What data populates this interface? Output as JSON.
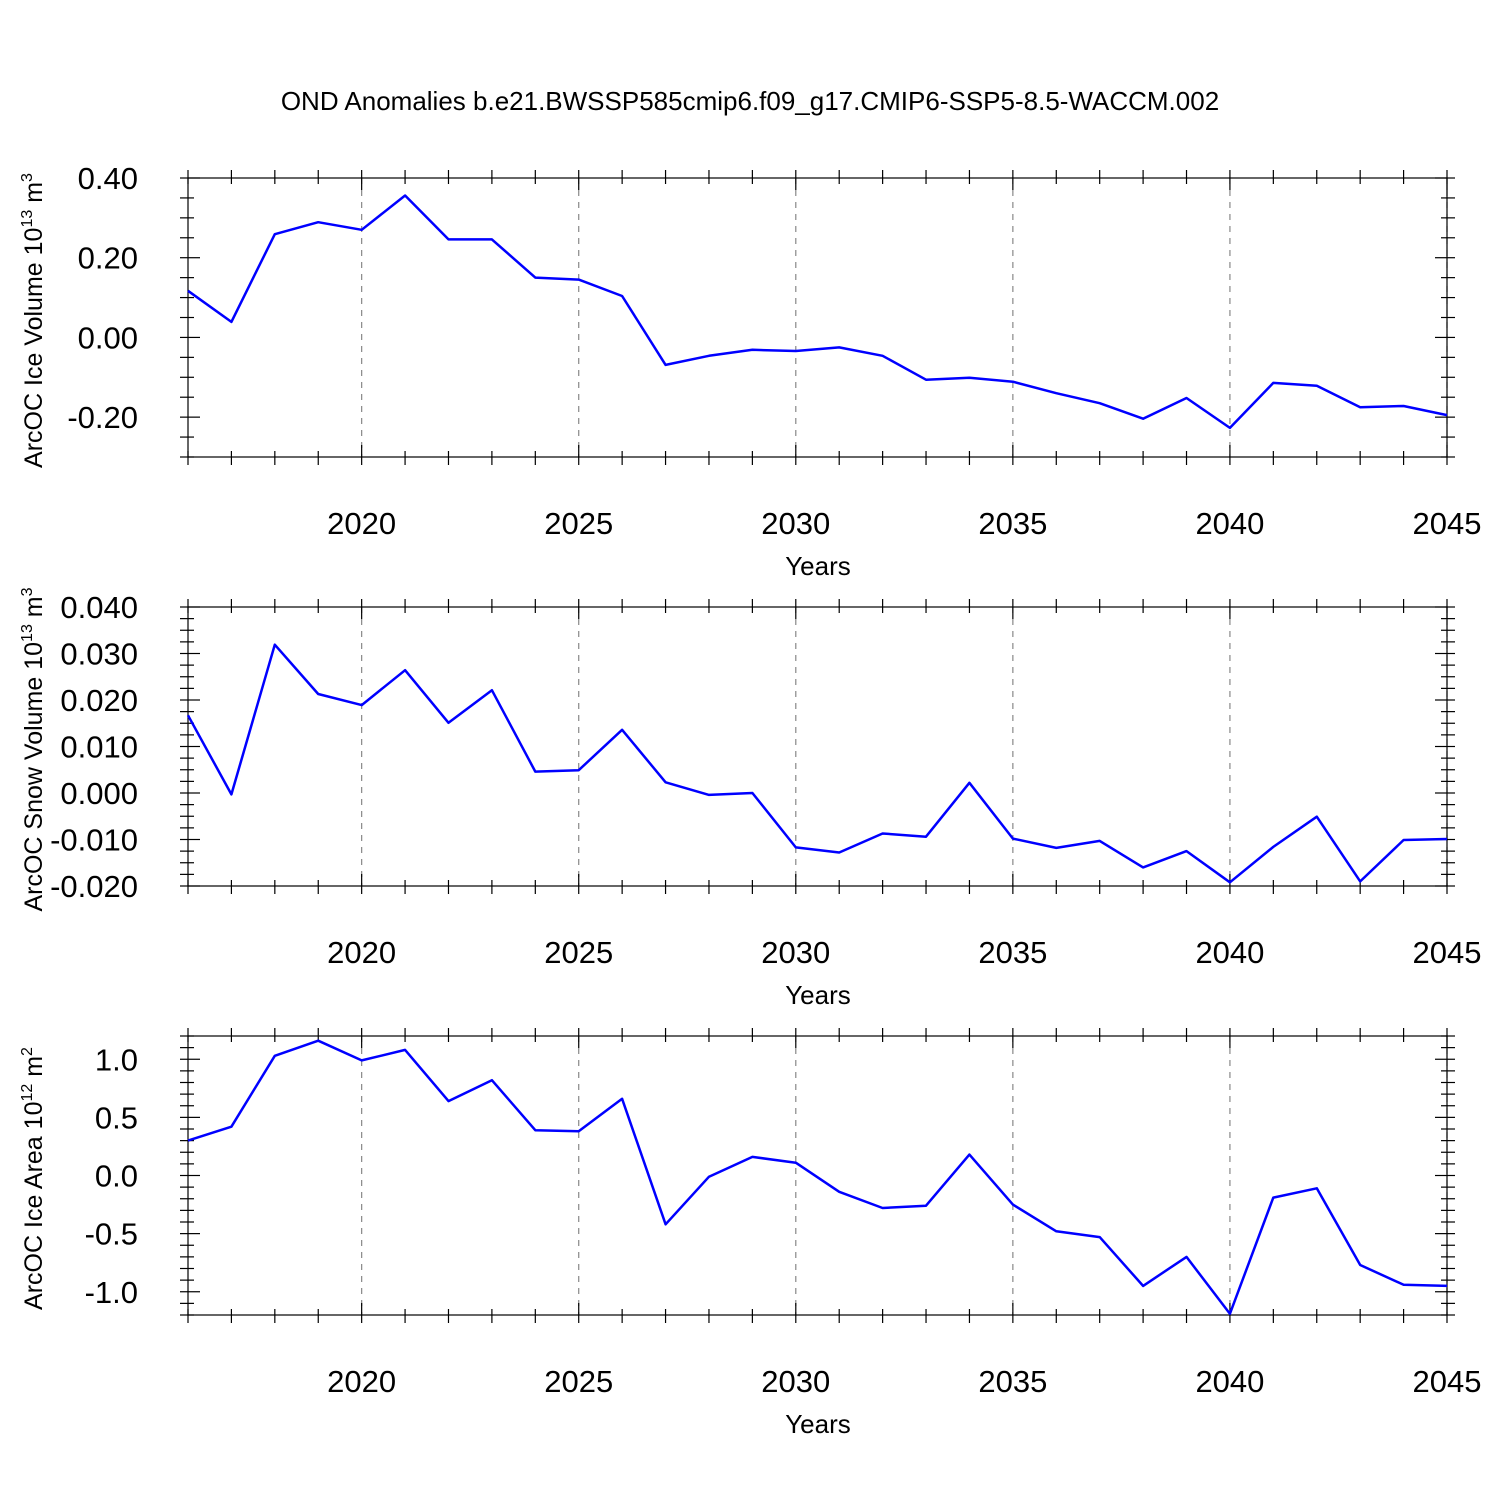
{
  "chart_data": {
    "title": "OND Anomalies b.e21.BWSSP585cmip6.f09_g17.CMIP6-SSP5-8.5-WACCM.002",
    "line_color": "#0000ff",
    "panels": [
      {
        "type": "line",
        "ylabel": "ArcOC Ice Volume 10",
        "ylabel_exp": "13",
        "ylabel_unit": " m",
        "ylabel_unit_exp": "3",
        "xlabel": "Years",
        "xlim": [
          2016,
          2045
        ],
        "ylim": [
          -0.3,
          0.4
        ],
        "yticks": [
          0.4,
          0.2,
          0.0,
          -0.2
        ],
        "ytick_labels": [
          "0.40",
          "0.20",
          "0.00",
          "-0.20"
        ],
        "y_minor": 0.05,
        "xticks": [
          2020,
          2025,
          2030,
          2035,
          2040,
          2045
        ],
        "xtick_labels": [
          "2020",
          "2025",
          "2030",
          "2035",
          "2040",
          "2045"
        ],
        "x": [
          2016,
          2017,
          2018,
          2019,
          2020,
          2021,
          2022,
          2023,
          2024,
          2025,
          2026,
          2027,
          2028,
          2029,
          2030,
          2031,
          2032,
          2033,
          2034,
          2035,
          2036,
          2037,
          2038,
          2039,
          2040,
          2041,
          2042,
          2043,
          2044,
          2045
        ],
        "values": [
          0.117,
          0.039,
          0.259,
          0.289,
          0.27,
          0.356,
          0.246,
          0.246,
          0.15,
          0.145,
          0.104,
          -0.069,
          -0.046,
          -0.031,
          -0.034,
          -0.025,
          -0.046,
          -0.106,
          -0.101,
          -0.111,
          -0.14,
          -0.165,
          -0.204,
          -0.152,
          -0.227,
          -0.114,
          -0.121,
          -0.175,
          -0.172,
          -0.195
        ]
      },
      {
        "type": "line",
        "ylabel": "ArcOC Snow Volume 10",
        "ylabel_exp": "13",
        "ylabel_unit": " m",
        "ylabel_unit_exp": "3",
        "xlabel": "Years",
        "xlim": [
          2016,
          2045
        ],
        "ylim": [
          -0.02,
          0.04
        ],
        "yticks": [
          0.04,
          0.03,
          0.02,
          0.01,
          0.0,
          -0.01,
          -0.02
        ],
        "ytick_labels": [
          "0.040",
          "0.030",
          "0.020",
          "0.010",
          "0.000",
          "-0.010",
          "-0.020"
        ],
        "y_minor": 0.0025,
        "xticks": [
          2020,
          2025,
          2030,
          2035,
          2040,
          2045
        ],
        "xtick_labels": [
          "2020",
          "2025",
          "2030",
          "2035",
          "2040",
          "2045"
        ],
        "x": [
          2016,
          2017,
          2018,
          2019,
          2020,
          2021,
          2022,
          2023,
          2024,
          2025,
          2026,
          2027,
          2028,
          2029,
          2030,
          2031,
          2032,
          2033,
          2034,
          2035,
          2036,
          2037,
          2038,
          2039,
          2040,
          2041,
          2042,
          2043,
          2044,
          2045
        ],
        "values": [
          0.0167,
          -0.0003,
          0.0319,
          0.0213,
          0.0189,
          0.0264,
          0.0151,
          0.0221,
          0.0046,
          0.0049,
          0.0136,
          0.0023,
          -0.0004,
          0.0,
          -0.0117,
          -0.0128,
          -0.0087,
          -0.0094,
          0.0022,
          -0.0098,
          -0.0118,
          -0.0103,
          -0.016,
          -0.0125,
          -0.0192,
          -0.0116,
          -0.0051,
          -0.019,
          -0.0101,
          -0.0099
        ]
      },
      {
        "type": "line",
        "ylabel": "ArcOC Ice Area 10",
        "ylabel_exp": "12",
        "ylabel_unit": " m",
        "ylabel_unit_exp": "2",
        "xlabel": "Years",
        "xlim": [
          2016,
          2045
        ],
        "ylim": [
          -1.2,
          1.2
        ],
        "yticks": [
          1.0,
          0.5,
          0.0,
          -0.5,
          -1.0
        ],
        "ytick_labels": [
          "1.0",
          "0.5",
          "0.0",
          "-0.5",
          "-1.0"
        ],
        "y_minor": 0.1,
        "xticks": [
          2020,
          2025,
          2030,
          2035,
          2040,
          2045
        ],
        "xtick_labels": [
          "2020",
          "2025",
          "2030",
          "2035",
          "2040",
          "2045"
        ],
        "x": [
          2016,
          2017,
          2018,
          2019,
          2020,
          2021,
          2022,
          2023,
          2024,
          2025,
          2026,
          2027,
          2028,
          2029,
          2030,
          2031,
          2032,
          2033,
          2034,
          2035,
          2036,
          2037,
          2038,
          2039,
          2040,
          2041,
          2042,
          2043,
          2044,
          2045
        ],
        "values": [
          0.3,
          0.42,
          1.03,
          1.16,
          0.99,
          1.08,
          0.64,
          0.82,
          0.39,
          0.38,
          0.66,
          -0.42,
          -0.01,
          0.16,
          0.11,
          -0.14,
          -0.28,
          -0.26,
          0.18,
          -0.25,
          -0.48,
          -0.53,
          -0.95,
          -0.7,
          -1.19,
          -0.19,
          -0.11,
          -0.77,
          -0.94,
          -0.95
        ]
      }
    ]
  }
}
